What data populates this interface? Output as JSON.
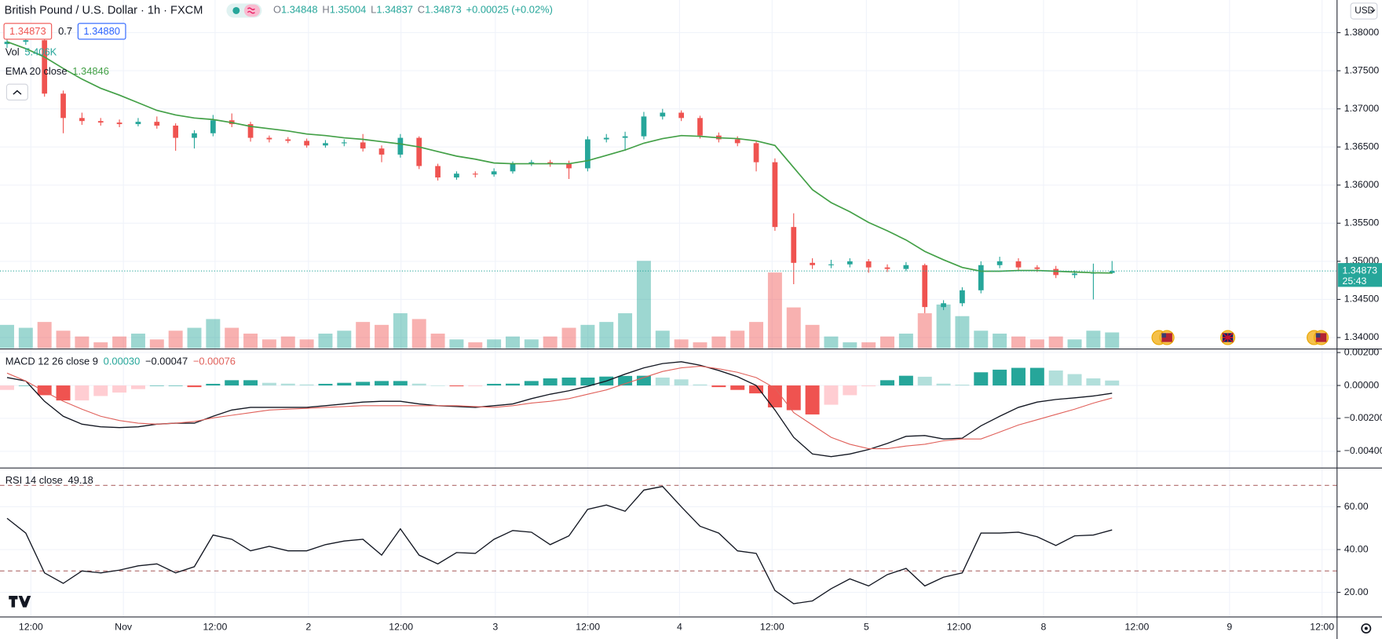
{
  "chart_data": [
    {
      "type": "candlestick",
      "title": "British Pound / U.S. Dollar · 1h · FXCM",
      "legend": {
        "o_label": "O",
        "open": "1.34848",
        "h_label": "H",
        "high": "1.35004",
        "l_label": "L",
        "low": "1.34837",
        "c_label": "C",
        "close": "1.34873",
        "change": "+0.00025 (+0.02%)"
      },
      "bid": "1.34873",
      "spread": "0.7",
      "ask": "1.34880",
      "currency": "USD",
      "up_color": "#26a69a",
      "down_color": "#ef5350",
      "open": [
        1.3785,
        1.3788,
        1.379,
        1.372,
        1.3688,
        1.3684,
        1.3682,
        1.368,
        1.3683,
        1.3678,
        1.3662,
        1.3668,
        1.3685,
        1.368,
        1.3662,
        1.366,
        1.3658,
        1.3652,
        1.3655,
        1.3656,
        1.3648,
        1.364,
        1.3662,
        1.3625,
        1.361,
        1.3615,
        1.3614,
        1.3618,
        1.3628,
        1.363,
        1.3628,
        1.3622,
        1.366,
        1.3662,
        1.3664,
        1.369,
        1.3695,
        1.3688,
        1.3665,
        1.366,
        1.3655,
        1.363,
        1.3545,
        1.3498,
        1.3495,
        1.3496,
        1.35,
        1.3492,
        1.349,
        1.3495,
        1.344,
        1.3445,
        1.3462,
        1.3495,
        1.35,
        1.3492,
        1.349,
        1.3482,
        1.3484,
        1.34848
      ],
      "high": [
        1.3795,
        1.3798,
        1.3795,
        1.3724,
        1.3695,
        1.3688,
        1.3686,
        1.3688,
        1.369,
        1.3681,
        1.3672,
        1.3692,
        1.3694,
        1.3683,
        1.3665,
        1.3663,
        1.3661,
        1.3659,
        1.366,
        1.3667,
        1.3652,
        1.3667,
        1.3664,
        1.3628,
        1.3618,
        1.3618,
        1.3622,
        1.3631,
        1.3633,
        1.3633,
        1.3632,
        1.3664,
        1.3667,
        1.367,
        1.3696,
        1.37,
        1.3698,
        1.3691,
        1.3669,
        1.3664,
        1.3658,
        1.3635,
        1.3563,
        1.3504,
        1.3502,
        1.3504,
        1.3503,
        1.3496,
        1.3499,
        1.3497,
        1.3449,
        1.3466,
        1.35,
        1.3506,
        1.3504,
        1.3495,
        1.3494,
        1.3488,
        1.3497,
        1.35004
      ],
      "low": [
        1.378,
        1.3784,
        1.3716,
        1.3668,
        1.3679,
        1.3678,
        1.3676,
        1.3677,
        1.3674,
        1.3645,
        1.3648,
        1.3664,
        1.3676,
        1.3657,
        1.3656,
        1.3655,
        1.3649,
        1.3649,
        1.3651,
        1.3644,
        1.363,
        1.3636,
        1.3621,
        1.3606,
        1.3607,
        1.361,
        1.3611,
        1.3615,
        1.3625,
        1.3624,
        1.3608,
        1.3618,
        1.3656,
        1.3645,
        1.366,
        1.3686,
        1.3684,
        1.3661,
        1.3656,
        1.3651,
        1.3618,
        1.354,
        1.347,
        1.349,
        1.3491,
        1.3492,
        1.3485,
        1.3486,
        1.3487,
        1.3432,
        1.3436,
        1.3441,
        1.3458,
        1.3491,
        1.3488,
        1.3486,
        1.3478,
        1.3478,
        1.345,
        1.34837
      ],
      "close": [
        1.3788,
        1.379,
        1.372,
        1.3688,
        1.3684,
        1.3682,
        1.368,
        1.3683,
        1.3678,
        1.3662,
        1.3668,
        1.3685,
        1.368,
        1.3662,
        1.366,
        1.3658,
        1.3652,
        1.3655,
        1.3656,
        1.3648,
        1.364,
        1.3662,
        1.3625,
        1.361,
        1.3615,
        1.3614,
        1.3618,
        1.3628,
        1.363,
        1.3628,
        1.3622,
        1.366,
        1.3662,
        1.3664,
        1.369,
        1.3695,
        1.3688,
        1.3665,
        1.366,
        1.3655,
        1.363,
        1.3545,
        1.3498,
        1.3495,
        1.3496,
        1.35,
        1.3492,
        1.349,
        1.3495,
        1.344,
        1.3445,
        1.3462,
        1.3495,
        1.35,
        1.3492,
        1.349,
        1.3482,
        1.3484,
        1.3485,
        1.34873
      ],
      "volume": {
        "name": "Vol",
        "last_label": "5.406K",
        "values": [
          8,
          7,
          9,
          6,
          4,
          2,
          4,
          5,
          3,
          6,
          7,
          10,
          7,
          5,
          3,
          4,
          3,
          5,
          6,
          9,
          8,
          12,
          10,
          5,
          3,
          2,
          3,
          4,
          3,
          4,
          7,
          8,
          9,
          12,
          30,
          6,
          3,
          2,
          4,
          6,
          9,
          26,
          14,
          8,
          4,
          2,
          2,
          4,
          5,
          12,
          15,
          11,
          6,
          5,
          4,
          3,
          4,
          3,
          6,
          5.406
        ]
      },
      "ema": {
        "name": "EMA 20 close",
        "last_label": "1.34846",
        "color": "#43a047",
        "values": [
          1.3788,
          1.3779,
          1.3768,
          1.3753,
          1.3739,
          1.3727,
          1.3718,
          1.3708,
          1.3698,
          1.3692,
          1.3688,
          1.3686,
          1.3682,
          1.3677,
          1.3674,
          1.3671,
          1.3667,
          1.3665,
          1.3662,
          1.366,
          1.3657,
          1.3654,
          1.365,
          1.3644,
          1.3638,
          1.3634,
          1.3629,
          1.3628,
          1.3628,
          1.3628,
          1.3628,
          1.3632,
          1.3639,
          1.3646,
          1.3655,
          1.3661,
          1.3665,
          1.3664,
          1.3662,
          1.3661,
          1.3658,
          1.3652,
          1.3623,
          1.3594,
          1.3577,
          1.3565,
          1.3551,
          1.354,
          1.3528,
          1.3513,
          1.3502,
          1.3492,
          1.3487,
          1.3487,
          1.3488,
          1.3488,
          1.3487,
          1.3486,
          1.3485,
          1.34846
        ]
      },
      "last_price": 1.34873,
      "last_price_label": "1.34873",
      "countdown": "25:43",
      "ylim": [
        1.33861,
        1.38428
      ],
      "yticks": [
        {
          "value": 1.34,
          "label": "1.34000"
        },
        {
          "value": 1.345,
          "label": "1.34500"
        },
        {
          "value": 1.35,
          "label": "1.35000"
        },
        {
          "value": 1.355,
          "label": "1.35500"
        },
        {
          "value": 1.36,
          "label": "1.36000"
        },
        {
          "value": 1.365,
          "label": "1.36500"
        },
        {
          "value": 1.37,
          "label": "1.37000"
        },
        {
          "value": 1.375,
          "label": "1.37500"
        },
        {
          "value": 1.38,
          "label": "1.38000"
        }
      ],
      "x_axis_labels": [
        "12:00",
        "Nov",
        "12:00",
        "2",
        "12:00",
        "3",
        "12:00",
        "4",
        "12:00",
        "5",
        "12:00",
        "8",
        "12:00",
        "9",
        "12:00"
      ],
      "grid": true
    },
    {
      "type": "macd",
      "title": "MACD 12 26 close 9",
      "legend": {
        "histogram": "0.00030",
        "macd": "−0.00047",
        "signal": "−0.00076"
      },
      "histogram": [
        -0.00027,
        0,
        -0.00059,
        -0.00091,
        -0.00091,
        -0.00064,
        -0.00043,
        -0.00022,
        0,
        0,
        -0.0001,
        0.0001,
        0.00032,
        0.00032,
        0.00016,
        0.00011,
        6e-05,
        0.0001,
        0.00016,
        0.00022,
        0.00027,
        0.00027,
        0.00011,
        0,
        -5e-05,
        -5e-05,
        0.0001,
        0.00011,
        0.00027,
        0.00043,
        0.00048,
        0.00048,
        0.00054,
        0.00058,
        0.00059,
        0.00048,
        0.00037,
        6e-05,
        -0.0001,
        -0.00027,
        -0.00048,
        -0.00133,
        -0.0015,
        -0.00176,
        -0.00117,
        -0.00059,
        -5e-05,
        0.00032,
        0.00059,
        0.00053,
        0.00011,
        5e-05,
        0.0008,
        0.00096,
        0.00107,
        0.00107,
        0.00091,
        0.00069,
        0.00043,
        0.0003
      ],
      "macd": {
        "color": "#131722",
        "values": [
          0.00048,
          0.00027,
          -0.00096,
          -0.00187,
          -0.00235,
          -0.00251,
          -0.00256,
          -0.00251,
          -0.00235,
          -0.00229,
          -0.00229,
          -0.00187,
          -0.00149,
          -0.00133,
          -0.00133,
          -0.00133,
          -0.00133,
          -0.00123,
          -0.00112,
          -0.00101,
          -0.00096,
          -0.00096,
          -0.00112,
          -0.00123,
          -0.00128,
          -0.00133,
          -0.00123,
          -0.00112,
          -0.0008,
          -0.00053,
          -0.00032,
          -5e-05,
          0.00027,
          0.00069,
          0.00107,
          0.00133,
          0.00144,
          0.00123,
          0.00091,
          0.00053,
          0,
          -0.00149,
          -0.00315,
          -0.00416,
          -0.00432,
          -0.00416,
          -0.00389,
          -0.00352,
          -0.00309,
          -0.00304,
          -0.00325,
          -0.0032,
          -0.00245,
          -0.00187,
          -0.00133,
          -0.00101,
          -0.00085,
          -0.00075,
          -0.00064,
          -0.00047
        ]
      },
      "signal": {
        "color": "#e0605a",
        "values": [
          0.00075,
          0.00027,
          -0.00037,
          -0.00096,
          -0.00144,
          -0.00187,
          -0.00213,
          -0.00229,
          -0.00235,
          -0.00229,
          -0.00219,
          -0.00197,
          -0.00181,
          -0.00165,
          -0.00149,
          -0.00144,
          -0.00139,
          -0.00133,
          -0.00128,
          -0.00123,
          -0.00123,
          -0.00123,
          -0.00123,
          -0.00123,
          -0.00123,
          -0.00128,
          -0.00133,
          -0.00123,
          -0.00107,
          -0.00096,
          -0.0008,
          -0.00053,
          -0.00027,
          0.00011,
          0.00048,
          0.00085,
          0.00107,
          0.00117,
          0.00101,
          0.0008,
          0.00048,
          -0.00016,
          -0.00165,
          -0.0024,
          -0.00315,
          -0.00357,
          -0.00384,
          -0.00384,
          -0.00368,
          -0.00357,
          -0.00336,
          -0.00325,
          -0.00325,
          -0.00283,
          -0.0024,
          -0.00208,
          -0.00176,
          -0.00144,
          -0.00107,
          -0.00076
        ]
      },
      "ylim": [
        -0.00496,
        0.00216
      ],
      "yticks": [
        {
          "value": 0.002,
          "label": "0.00200"
        },
        {
          "value": 0,
          "label": "0.00000"
        },
        {
          "value": -0.002,
          "label": "−0.00200"
        },
        {
          "value": -0.004,
          "label": "−0.00400"
        }
      ],
      "grid": true
    },
    {
      "type": "rsi",
      "title": "RSI 14 close",
      "legend": {
        "value": "49.18"
      },
      "color": "#131722",
      "values": [
        54.6,
        47.7,
        29.1,
        24.2,
        30.0,
        29.1,
        30.4,
        32.4,
        33.3,
        29.1,
        32.0,
        46.8,
        44.8,
        39.4,
        41.5,
        39.4,
        39.4,
        42.3,
        44.0,
        44.8,
        37.4,
        49.7,
        37.4,
        33.3,
        38.6,
        38.2,
        44.8,
        48.9,
        48.1,
        42.3,
        46.4,
        58.8,
        60.8,
        57.9,
        67.8,
        69.5,
        60,
        50.9,
        47.7,
        39.4,
        38.2,
        20.9,
        14.7,
        16.0,
        21.7,
        26.3,
        23.0,
        28.3,
        31.2,
        23.0,
        27.1,
        29.1,
        47.7,
        47.7,
        48.1,
        46.0,
        41.9,
        46.4,
        46.8,
        49.18
      ],
      "bands": [
        70,
        30
      ],
      "ylim": [
        8.5,
        77.7
      ],
      "yticks": [
        {
          "value": 20,
          "label": "20.00"
        },
        {
          "value": 40,
          "label": "40.00"
        },
        {
          "value": 60,
          "label": "60.00"
        }
      ],
      "grid": true
    }
  ]
}
